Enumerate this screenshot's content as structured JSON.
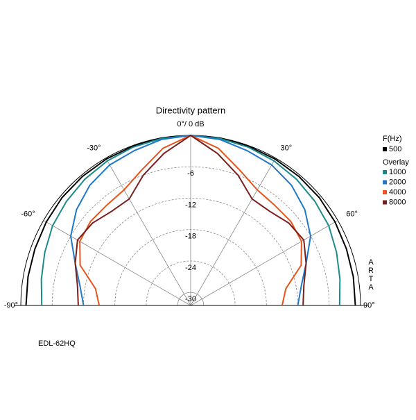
{
  "chart_data": {
    "type": "polar",
    "title": "Directivity pattern",
    "x": [
      -90,
      -80,
      -70,
      -60,
      -50,
      -40,
      -30,
      -20,
      -10,
      0,
      10,
      20,
      30,
      40,
      50,
      60,
      70,
      80,
      90
    ],
    "xticks": [
      {
        "value": -90,
        "label": "-90°"
      },
      {
        "value": -60,
        "label": "-60°"
      },
      {
        "value": -30,
        "label": "-30°"
      },
      {
        "value": 0,
        "label": "0°/ 0 dB"
      },
      {
        "value": 30,
        "label": "30°"
      },
      {
        "value": 60,
        "label": "60°"
      },
      {
        "value": 90,
        "label": "90°"
      }
    ],
    "rlim": [
      -32.5,
      0
    ],
    "rticks": [
      -6,
      -12,
      -18,
      -24,
      -30
    ],
    "grid": true,
    "legend_title": "F(Hz)",
    "overlay_title": "Overlay",
    "watermark": "ARTA",
    "caption": "EDL-62HQ",
    "series": [
      {
        "name": "500",
        "color": "#000000",
        "values": [
          -1,
          -0.9,
          -0.8,
          -0.6,
          -0.4,
          -0.3,
          -0.2,
          -0.1,
          0,
          0,
          0,
          -0.1,
          -0.2,
          -0.3,
          -0.4,
          -0.6,
          -0.8,
          -0.9,
          -1
        ]
      },
      {
        "name": "1000",
        "color": "#1a8a8a",
        "values": [
          -4,
          -3.5,
          -2.8,
          -2,
          -1.5,
          -1,
          -0.6,
          -0.3,
          -0.1,
          0,
          -0.1,
          -0.3,
          -0.6,
          -1,
          -1.5,
          -2,
          -2.8,
          -3.5,
          -4
        ]
      },
      {
        "name": "2000",
        "color": "#1f78c8",
        "values": [
          -12,
          -11,
          -9,
          -6,
          -4,
          -2.5,
          -1.5,
          -1,
          -0.3,
          0,
          -0.3,
          -1,
          -1.5,
          -2.5,
          -4,
          -6,
          -9,
          -11,
          -12
        ]
      },
      {
        "name": "4000",
        "color": "#e8541a",
        "values": [
          -15,
          -14,
          -10,
          -8,
          -7.5,
          -7.5,
          -7,
          -5,
          -2,
          0,
          -2,
          -5,
          -7,
          -7.5,
          -7.5,
          -8,
          -10,
          -14,
          -15
        ]
      },
      {
        "name": "8000",
        "color": "#7a1e1e",
        "values": [
          -11,
          -10.5,
          -9,
          -7.5,
          -8,
          -9,
          -9,
          -6,
          -3,
          0,
          -3,
          -6,
          -9,
          -9,
          -8,
          -7.5,
          -9,
          -10.5,
          -11
        ]
      }
    ]
  }
}
